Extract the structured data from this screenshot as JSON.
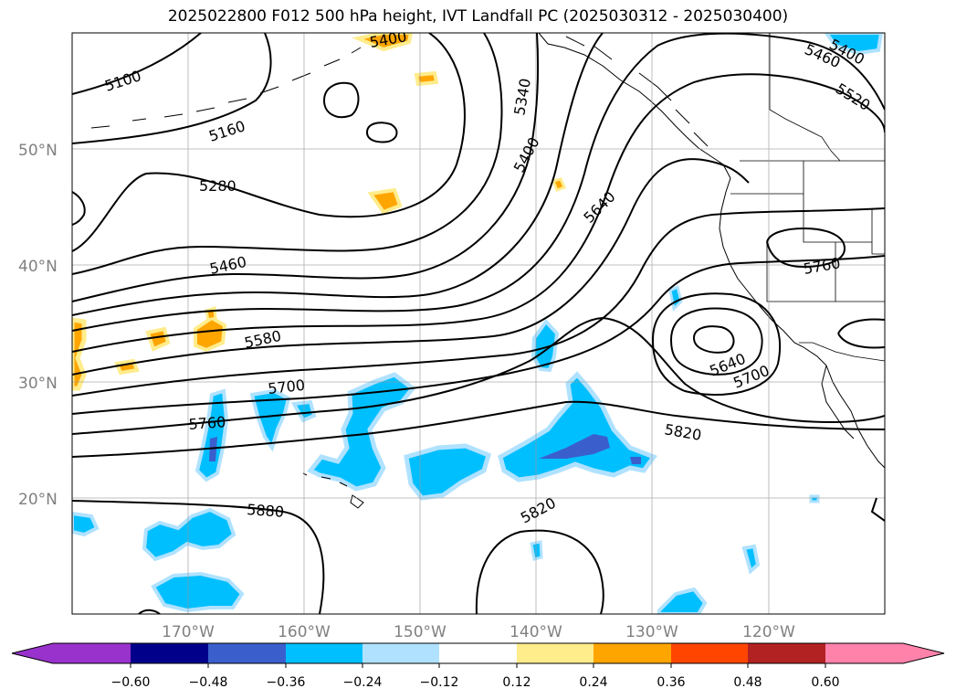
{
  "title": "2025022800 F012 500 hPa height, IVT Landfall PC (2025030312 - 2025030400)",
  "map": {
    "lat_labels": [
      "50°N",
      "40°N",
      "30°N",
      "20°N"
    ],
    "lon_labels": [
      "170°W",
      "160°W",
      "150°W",
      "140°W",
      "130°W",
      "120°W"
    ],
    "tick_label_color": "#808080",
    "gridlines": true,
    "contour_labels": [
      "5100",
      "5160",
      "5280",
      "5460",
      "5580",
      "5700",
      "5760",
      "5880",
      "5340",
      "5400",
      "5640",
      "5820",
      "5820",
      "5460",
      "5520",
      "5400",
      "5760",
      "5640",
      "5700",
      "5400"
    ]
  },
  "colorbar": {
    "ticks": [
      "−0.60",
      "−0.48",
      "−0.36",
      "−0.24",
      "−0.12",
      "0.12",
      "0.24",
      "0.36",
      "0.48",
      "0.60"
    ],
    "colors": [
      "#9932cc",
      "#00008b",
      "#3a5fcd",
      "#00bfff",
      "#b0e2ff",
      "#ffffff",
      "#ffec8b",
      "#ffa500",
      "#ff4500",
      "#b22222",
      "#ff82ab"
    ],
    "extend": "both"
  },
  "shading_colors": {
    "neg_light": "#b0e2ff",
    "neg_mid": "#00bfff",
    "neg_strong": "#3a5fcd",
    "pos_light": "#ffec8b",
    "pos_mid": "#ffa500"
  }
}
